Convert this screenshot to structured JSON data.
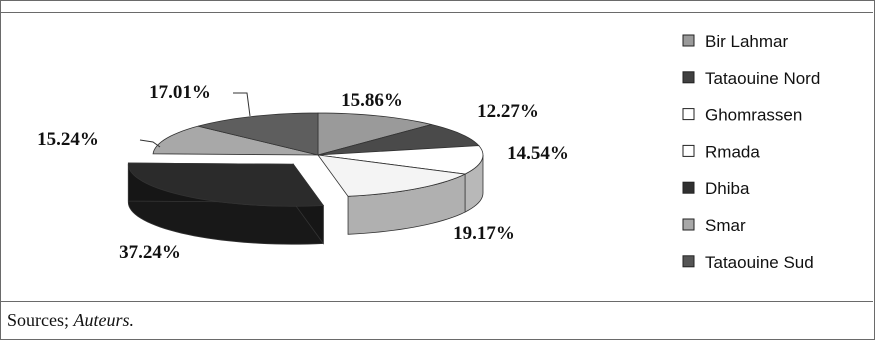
{
  "chart_data": {
    "type": "pie",
    "three_d": true,
    "legend_position": "right",
    "categories": [
      "Bir Lahmar",
      "Tataouine Nord",
      "Ghomrassen",
      "Rmada",
      "Dhiba",
      "Smar",
      "Tataouine Sud"
    ],
    "values": [
      15.86,
      12.27,
      14.54,
      19.17,
      37.24,
      15.24,
      17.01
    ],
    "value_labels": [
      "15.86%",
      "12.27%",
      "14.54%",
      "19.17%",
      "37.24%",
      "15.24%",
      "17.01%"
    ],
    "colors": [
      "#9a9a9a",
      "#4a4a4a",
      "#ffffff",
      "#f4f4f4",
      "#2b2b2b",
      "#a8a8a8",
      "#5e5e5e"
    ],
    "legend_colors": [
      "#9a9a9a",
      "#404040",
      "#ffffff",
      "#ffffff",
      "#303030",
      "#a8a8a8",
      "#555555"
    ]
  },
  "footer": {
    "source_prefix": "Sources; ",
    "source_author": "Auteurs."
  }
}
